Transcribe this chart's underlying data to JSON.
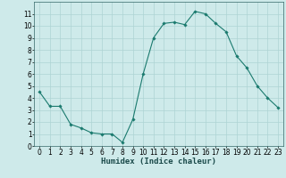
{
  "x": [
    0,
    1,
    2,
    3,
    4,
    5,
    6,
    7,
    8,
    9,
    10,
    11,
    12,
    13,
    14,
    15,
    16,
    17,
    18,
    19,
    20,
    21,
    22,
    23
  ],
  "y": [
    4.5,
    3.3,
    3.3,
    1.8,
    1.5,
    1.1,
    1.0,
    1.0,
    0.3,
    2.2,
    6.0,
    9.0,
    10.2,
    10.3,
    10.1,
    11.2,
    11.0,
    10.2,
    9.5,
    7.5,
    6.5,
    5.0,
    4.0,
    3.2
  ],
  "line_color": "#1a7a6e",
  "marker": "D",
  "marker_size": 1.8,
  "bg_color": "#ceeaea",
  "grid_color": "#aed4d4",
  "xlabel": "Humidex (Indice chaleur)",
  "xlabel_fontsize": 6.5,
  "xlim": [
    -0.5,
    23.5
  ],
  "ylim": [
    0,
    12
  ],
  "yticks": [
    0,
    1,
    2,
    3,
    4,
    5,
    6,
    7,
    8,
    9,
    10,
    11
  ],
  "xticks": [
    0,
    1,
    2,
    3,
    4,
    5,
    6,
    7,
    8,
    9,
    10,
    11,
    12,
    13,
    14,
    15,
    16,
    17,
    18,
    19,
    20,
    21,
    22,
    23
  ],
  "tick_fontsize": 5.5,
  "spine_color": "#336666"
}
